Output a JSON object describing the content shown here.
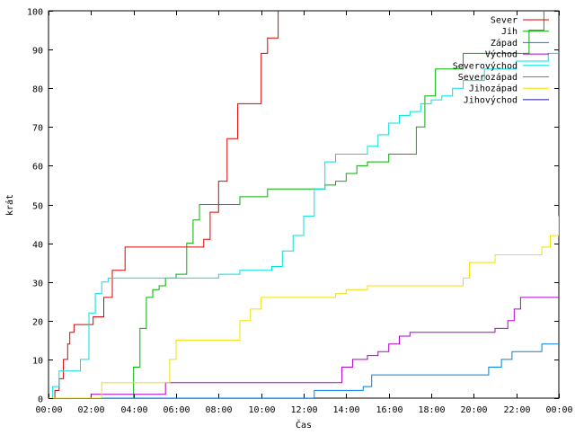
{
  "chart_data": {
    "type": "line",
    "title": "",
    "xlabel": "Čas",
    "ylabel": "krát",
    "xlim_hours": [
      0,
      24
    ],
    "ylim": [
      0,
      100
    ],
    "x_unit": "hours",
    "xticks_hours": [
      0,
      2,
      4,
      6,
      8,
      10,
      12,
      14,
      16,
      18,
      20,
      22,
      24
    ],
    "xtick_labels": [
      "00:00",
      "02:00",
      "04:00",
      "06:00",
      "08:00",
      "10:00",
      "12:00",
      "14:00",
      "16:00",
      "18:00",
      "20:00",
      "22:00",
      "00:00"
    ],
    "yticks": [
      0,
      10,
      20,
      30,
      40,
      50,
      60,
      70,
      80,
      90,
      100
    ],
    "ytick_labels": [
      "0",
      "10",
      "20",
      "30",
      "40",
      "50",
      "60",
      "70",
      "80",
      "90",
      "100"
    ],
    "grid": false,
    "legend_position": "top-right",
    "step": true,
    "series": [
      {
        "name": "Sever",
        "color": "#e00000",
        "x": [
          0,
          0.3,
          0.5,
          0.7,
          0.9,
          1.0,
          1.2,
          1.5,
          2.1,
          2.6,
          3.0,
          3.6,
          4.5,
          5.5,
          6.5,
          7.0,
          7.3,
          7.6,
          8.0,
          8.4,
          8.9,
          9.4,
          10.0,
          10.3,
          10.8
        ],
        "y": [
          0,
          2,
          5,
          10,
          14,
          17,
          19,
          19,
          21,
          26,
          33,
          39,
          39,
          39,
          39,
          39,
          41,
          48,
          56,
          67,
          76,
          76,
          89,
          93,
          100
        ]
      },
      {
        "name": "Jih",
        "color": "#00b000",
        "x": [
          0,
          3.7,
          4.0,
          4.3,
          4.6,
          4.9,
          5.2,
          5.5,
          6.0,
          6.5,
          6.8,
          7.1,
          7.3,
          9.0,
          10.3,
          12.4,
          13.0,
          13.5,
          14.0,
          14.5,
          15.0,
          16.0,
          17.0,
          17.3,
          17.7,
          18.2,
          18.5,
          19.5,
          20.5,
          22.0,
          22.6,
          23.3
        ],
        "y": [
          0,
          0,
          8,
          18,
          26,
          28,
          29,
          31,
          32,
          40,
          46,
          50,
          50,
          52,
          54,
          54,
          55,
          56,
          58,
          60,
          61,
          63,
          63,
          70,
          78,
          85,
          85,
          89,
          89,
          89,
          95,
          100
        ]
      },
      {
        "name": "Západ",
        "color": "#0080e0",
        "x": [
          0,
          11.6,
          12.5,
          14.3,
          14.8,
          15.2,
          15.8,
          17.0,
          19.5,
          20.4,
          20.7,
          21.3,
          21.8,
          22.5,
          23.2,
          24
        ],
        "y": [
          0,
          0,
          2,
          2,
          3,
          6,
          6,
          6,
          6,
          6,
          8,
          10,
          12,
          12,
          14,
          14
        ]
      },
      {
        "name": "Východ",
        "color": "#b000d0",
        "x": [
          0,
          2.0,
          2.5,
          3.5,
          5.2,
          5.5,
          8.0,
          11.0,
          13.5,
          13.8,
          14.3,
          15.0,
          15.5,
          16.0,
          16.5,
          17.0,
          18.0,
          19.0,
          20.0,
          21.0,
          21.6,
          21.9,
          22.2,
          22.8,
          23.5,
          24
        ],
        "y": [
          0,
          1,
          1,
          1,
          1,
          4,
          4,
          4,
          4,
          8,
          10,
          11,
          12,
          14,
          16,
          17,
          17,
          17,
          17,
          18,
          20,
          23,
          26,
          26,
          26,
          26
        ]
      },
      {
        "name": "Severovýchod",
        "color": "#00e0e0",
        "x": [
          0,
          0.2,
          0.5,
          1.2,
          1.5,
          1.9,
          2.2,
          2.5,
          2.8,
          4.0,
          6.0,
          8.0,
          9.0,
          10.5,
          11.0,
          11.5,
          12.0,
          12.5,
          13.0,
          13.5,
          14.5,
          15.0,
          15.5,
          16.0,
          16.5,
          17.0,
          17.5,
          18.0,
          18.5,
          19.0,
          19.5,
          20.5,
          22.0,
          23.5,
          24
        ],
        "y": [
          0,
          3,
          7,
          7,
          10,
          22,
          27,
          30,
          31,
          31,
          31,
          32,
          33,
          34,
          38,
          42,
          47,
          54,
          61,
          63,
          63,
          65,
          68,
          71,
          73,
          74,
          76,
          77,
          78,
          80,
          82,
          85,
          87,
          89,
          89
        ]
      },
      {
        "name": "Severozápad",
        "color": "#d07000",
        "x": [],
        "y": []
      },
      {
        "name": "Jihozápad",
        "color": "#f0e000",
        "x": [
          0,
          2.5,
          2.8,
          4.0,
          5.4,
          5.7,
          6.0,
          8.0,
          8.7,
          9.0,
          9.5,
          10.0,
          13.5,
          14.0,
          14.5,
          15.0,
          16.0,
          17.0,
          19.0,
          19.5,
          19.8,
          20.5,
          21.0,
          21.8,
          22.5,
          23.2,
          23.6,
          24
        ],
        "y": [
          0,
          4,
          4,
          4,
          4,
          10,
          15,
          15,
          15,
          20,
          23,
          26,
          27,
          28,
          28,
          29,
          29,
          29,
          29,
          31,
          35,
          35,
          37,
          37,
          37,
          39,
          42,
          47
        ]
      },
      {
        "name": "Jihovýchod",
        "color": "#2010a0",
        "x": [],
        "y": []
      }
    ]
  }
}
